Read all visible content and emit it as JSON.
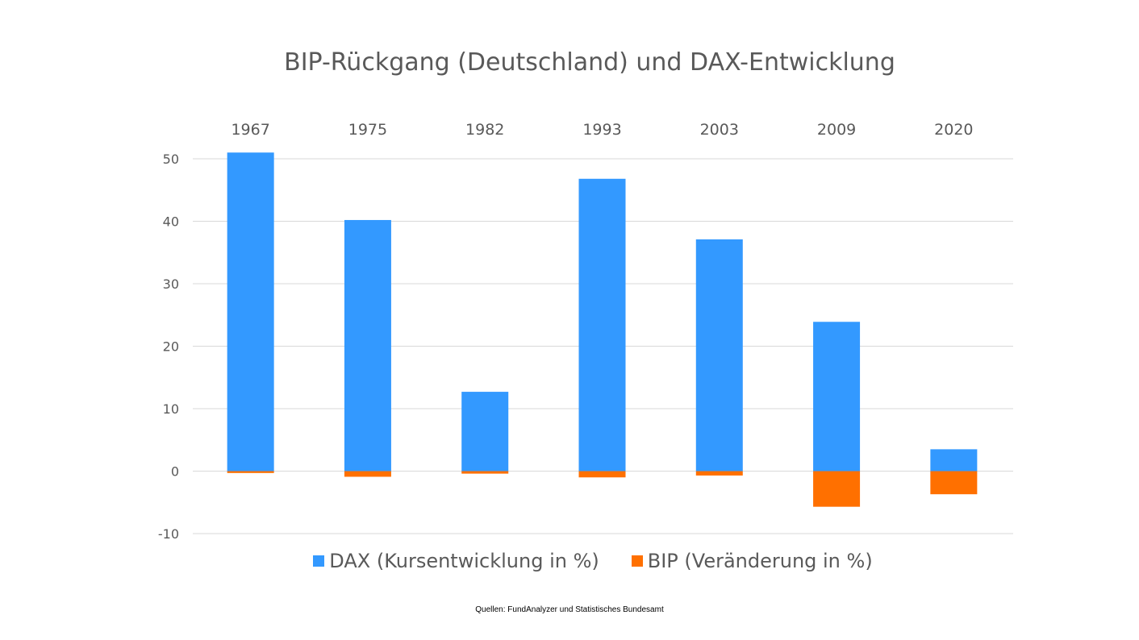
{
  "chart_data": {
    "type": "bar",
    "title": "BIP-Rückgang (Deutschland) und DAX-Entwicklung",
    "categories": [
      "1967",
      "1975",
      "1982",
      "1993",
      "2003",
      "2009",
      "2020"
    ],
    "series": [
      {
        "name": "DAX (Kursentwicklung in %)",
        "color": "#3399ff",
        "values": [
          51.0,
          40.2,
          12.7,
          46.8,
          37.1,
          23.9,
          3.5
        ]
      },
      {
        "name": "BIP (Veränderung in %)",
        "color": "#ff7000",
        "values": [
          -0.3,
          -0.9,
          -0.4,
          -1.0,
          -0.7,
          -5.7,
          -3.7
        ]
      }
    ],
    "ylim": [
      -10,
      50
    ],
    "yticks": [
      -10,
      0,
      10,
      20,
      30,
      40,
      50
    ],
    "grid": true,
    "category_labels_position": "top",
    "legend_position": "bottom"
  },
  "source_note": "Quellen: FundAnalyzer und Statistisches Bundesamt"
}
